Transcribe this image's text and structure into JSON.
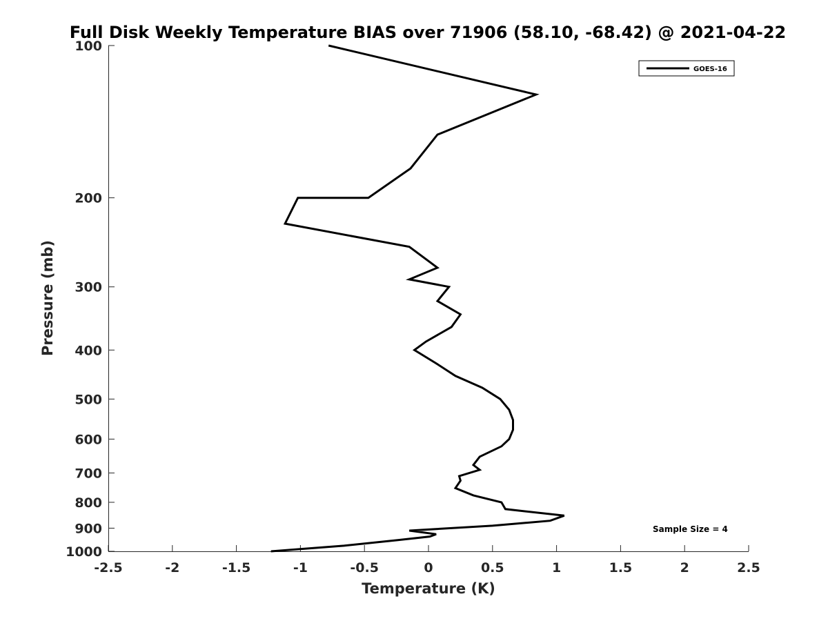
{
  "chart_data": {
    "type": "line",
    "title": "Full Disk Weekly Temperature BIAS over 71906 (58.10, -68.42) @ 2021-04-22",
    "xlabel": "Temperature (K)",
    "ylabel": "Pressure (mb)",
    "xlim": [
      -2.5,
      2.5
    ],
    "ylim": [
      100,
      1000
    ],
    "y_scale": "log",
    "y_reversed": true,
    "x_ticks": [
      -2.5,
      -2,
      -1.5,
      -1,
      -0.5,
      0,
      0.5,
      1,
      1.5,
      2,
      2.5
    ],
    "x_tick_labels": [
      "-2.5",
      "-2",
      "-1.5",
      "-1",
      "-0.5",
      "0",
      "0.5",
      "1",
      "1.5",
      "2",
      "2.5"
    ],
    "y_ticks": [
      100,
      200,
      300,
      400,
      500,
      600,
      700,
      800,
      900,
      1000
    ],
    "y_tick_labels": [
      "100",
      "200",
      "300",
      "400",
      "500",
      "600",
      "700",
      "800",
      "900",
      "1000"
    ],
    "grid": false,
    "legend_position": "top-right",
    "series": [
      {
        "name": "GOES-16",
        "color": "#000000",
        "points": [
          {
            "x": -0.78,
            "y": 100
          },
          {
            "x": 0.84,
            "y": 125
          },
          {
            "x": 0.07,
            "y": 150
          },
          {
            "x": -0.14,
            "y": 175
          },
          {
            "x": -0.47,
            "y": 200
          },
          {
            "x": -1.02,
            "y": 200
          },
          {
            "x": -1.12,
            "y": 225
          },
          {
            "x": -0.15,
            "y": 250
          },
          {
            "x": 0.07,
            "y": 275
          },
          {
            "x": -0.15,
            "y": 290
          },
          {
            "x": 0.16,
            "y": 300
          },
          {
            "x": 0.07,
            "y": 320
          },
          {
            "x": 0.25,
            "y": 340
          },
          {
            "x": 0.18,
            "y": 360
          },
          {
            "x": -0.02,
            "y": 385
          },
          {
            "x": -0.11,
            "y": 400
          },
          {
            "x": 0.06,
            "y": 425
          },
          {
            "x": 0.21,
            "y": 450
          },
          {
            "x": 0.42,
            "y": 475
          },
          {
            "x": 0.56,
            "y": 500
          },
          {
            "x": 0.63,
            "y": 525
          },
          {
            "x": 0.66,
            "y": 550
          },
          {
            "x": 0.66,
            "y": 575
          },
          {
            "x": 0.63,
            "y": 600
          },
          {
            "x": 0.57,
            "y": 620
          },
          {
            "x": 0.4,
            "y": 650
          },
          {
            "x": 0.35,
            "y": 675
          },
          {
            "x": 0.4,
            "y": 690
          },
          {
            "x": 0.24,
            "y": 710
          },
          {
            "x": 0.25,
            "y": 725
          },
          {
            "x": 0.21,
            "y": 750
          },
          {
            "x": 0.35,
            "y": 775
          },
          {
            "x": 0.57,
            "y": 800
          },
          {
            "x": 0.6,
            "y": 825
          },
          {
            "x": 1.06,
            "y": 850
          },
          {
            "x": 0.95,
            "y": 870
          },
          {
            "x": 0.5,
            "y": 890
          },
          {
            "x": -0.15,
            "y": 910
          },
          {
            "x": 0.06,
            "y": 925
          },
          {
            "x": 0.01,
            "y": 935
          },
          {
            "x": -0.24,
            "y": 950
          },
          {
            "x": -0.66,
            "y": 975
          },
          {
            "x": -1.23,
            "y": 1000
          }
        ]
      }
    ],
    "annotations": [
      "Sample Size = 4"
    ]
  }
}
